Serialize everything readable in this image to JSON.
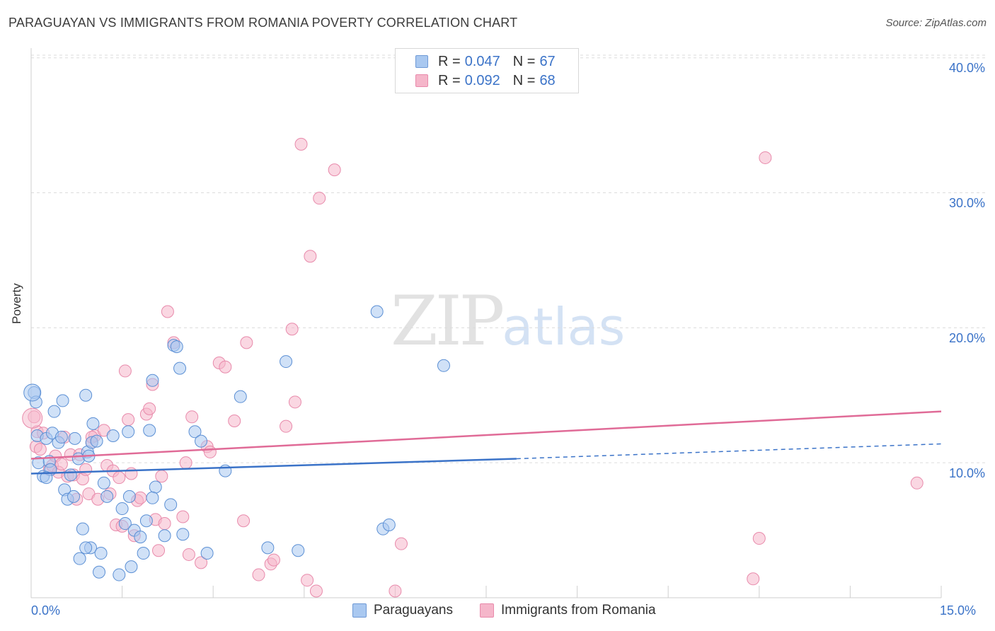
{
  "title": "PARAGUAYAN VS IMMIGRANTS FROM ROMANIA POVERTY CORRELATION CHART",
  "source": "Source: ZipAtlas.com",
  "watermark": {
    "zip": "ZIP",
    "atlas": "atlas"
  },
  "legend": {
    "rows": [
      {
        "r_label": "R = ",
        "r_value": "0.047",
        "n_label": "N = ",
        "n_value": "67",
        "color": "#a9c8f0"
      },
      {
        "r_label": "R = ",
        "r_value": "0.092",
        "n_label": "N = ",
        "n_value": "68",
        "color": "#f5b6ca"
      }
    ]
  },
  "bottom_legend": [
    {
      "label": "Paraguayans",
      "color": "#a9c8f0"
    },
    {
      "label": "Immigrants from Romania",
      "color": "#f5b6ca"
    }
  ],
  "chart_data": {
    "type": "scatter",
    "title": "PARAGUAYAN VS IMMIGRANTS FROM ROMANIA POVERTY CORRELATION CHART",
    "xlabel": "",
    "ylabel": "Poverty",
    "xlim": [
      0,
      15
    ],
    "ylim": [
      0,
      41
    ],
    "x_tick_labels": [
      "0.0%",
      "15.0%"
    ],
    "y_tick_labels": [
      "10.0%",
      "20.0%",
      "30.0%",
      "40.0%"
    ],
    "y_ticks": [
      10,
      20,
      30,
      40
    ],
    "colors": {
      "paraguayans": "#3b73c8",
      "romania": "#e06b97",
      "paraguayans_fill": "#a9c8f0",
      "romania_fill": "#f5b6ca"
    },
    "series": [
      {
        "name": "Paraguayans",
        "trend": {
          "x0": 0,
          "y0": 9.2,
          "x1": 8.0,
          "y1": 10.3,
          "x_dash_end": 15,
          "y_dash_end": 11.4
        },
        "points": [
          [
            0.05,
            15.2
          ],
          [
            0.08,
            14.5
          ],
          [
            0.1,
            12.0
          ],
          [
            0.12,
            10.0
          ],
          [
            0.2,
            9.0
          ],
          [
            0.25,
            11.8
          ],
          [
            0.3,
            10.1
          ],
          [
            0.32,
            9.5
          ],
          [
            0.35,
            12.2
          ],
          [
            0.38,
            13.8
          ],
          [
            0.45,
            11.5
          ],
          [
            0.5,
            11.9
          ],
          [
            0.52,
            14.6
          ],
          [
            0.55,
            8.0
          ],
          [
            0.6,
            7.3
          ],
          [
            0.65,
            9.1
          ],
          [
            0.7,
            7.5
          ],
          [
            0.72,
            11.8
          ],
          [
            0.78,
            10.3
          ],
          [
            0.85,
            5.1
          ],
          [
            0.9,
            15.0
          ],
          [
            0.93,
            10.8
          ],
          [
            0.95,
            10.5
          ],
          [
            0.98,
            3.7
          ],
          [
            1.0,
            11.5
          ],
          [
            1.02,
            12.9
          ],
          [
            1.08,
            11.6
          ],
          [
            1.12,
            1.9
          ],
          [
            1.15,
            3.3
          ],
          [
            1.2,
            8.5
          ],
          [
            1.25,
            7.5
          ],
          [
            1.35,
            12.0
          ],
          [
            1.45,
            1.7
          ],
          [
            1.5,
            6.6
          ],
          [
            1.55,
            5.5
          ],
          [
            1.6,
            12.3
          ],
          [
            1.62,
            7.5
          ],
          [
            1.65,
            2.3
          ],
          [
            1.7,
            5.0
          ],
          [
            1.8,
            4.5
          ],
          [
            1.85,
            3.3
          ],
          [
            1.9,
            5.7
          ],
          [
            1.95,
            12.4
          ],
          [
            2.0,
            16.1
          ],
          [
            2.05,
            8.2
          ],
          [
            2.2,
            4.6
          ],
          [
            2.3,
            6.9
          ],
          [
            2.35,
            18.7
          ],
          [
            2.4,
            18.6
          ],
          [
            2.45,
            17.0
          ],
          [
            2.5,
            4.7
          ],
          [
            2.7,
            12.3
          ],
          [
            2.8,
            11.6
          ],
          [
            2.9,
            3.3
          ],
          [
            3.2,
            9.4
          ],
          [
            3.45,
            14.9
          ],
          [
            3.9,
            3.7
          ],
          [
            4.2,
            17.5
          ],
          [
            4.4,
            3.5
          ],
          [
            5.7,
            21.2
          ],
          [
            5.8,
            5.1
          ],
          [
            5.9,
            5.4
          ],
          [
            6.8,
            17.2
          ],
          [
            0.9,
            3.7
          ],
          [
            0.8,
            2.9
          ],
          [
            0.25,
            8.9
          ],
          [
            2.0,
            7.4
          ]
        ]
      },
      {
        "name": "Immigrants from Romania",
        "trend": {
          "x0": 0,
          "y0": 10.3,
          "x1": 15,
          "y1": 13.8
        },
        "points": [
          [
            0.05,
            13.4
          ],
          [
            0.08,
            11.2
          ],
          [
            0.1,
            12.3
          ],
          [
            0.15,
            11.0
          ],
          [
            0.2,
            12.2
          ],
          [
            0.3,
            9.5
          ],
          [
            0.35,
            9.8
          ],
          [
            0.4,
            10.5
          ],
          [
            0.45,
            9.3
          ],
          [
            0.5,
            9.9
          ],
          [
            0.55,
            11.9
          ],
          [
            0.6,
            9.0
          ],
          [
            0.65,
            10.6
          ],
          [
            0.7,
            9.1
          ],
          [
            0.75,
            7.3
          ],
          [
            0.8,
            10.6
          ],
          [
            0.85,
            8.8
          ],
          [
            0.9,
            9.5
          ],
          [
            0.95,
            7.7
          ],
          [
            1.0,
            11.5
          ],
          [
            1.05,
            12.0
          ],
          [
            1.1,
            7.3
          ],
          [
            1.2,
            12.4
          ],
          [
            1.25,
            9.8
          ],
          [
            1.3,
            7.7
          ],
          [
            1.35,
            9.4
          ],
          [
            1.4,
            5.4
          ],
          [
            1.45,
            8.9
          ],
          [
            1.5,
            5.3
          ],
          [
            1.55,
            16.8
          ],
          [
            1.6,
            13.2
          ],
          [
            1.65,
            9.2
          ],
          [
            1.7,
            4.6
          ],
          [
            1.75,
            7.2
          ],
          [
            1.8,
            7.4
          ],
          [
            1.9,
            13.6
          ],
          [
            1.95,
            14.0
          ],
          [
            2.0,
            15.8
          ],
          [
            2.05,
            5.8
          ],
          [
            2.1,
            3.5
          ],
          [
            2.15,
            9.0
          ],
          [
            2.2,
            5.5
          ],
          [
            2.25,
            21.2
          ],
          [
            2.35,
            18.9
          ],
          [
            2.5,
            6.0
          ],
          [
            2.55,
            10.0
          ],
          [
            2.6,
            3.2
          ],
          [
            2.65,
            13.4
          ],
          [
            2.8,
            2.6
          ],
          [
            2.9,
            11.2
          ],
          [
            2.95,
            10.8
          ],
          [
            3.1,
            17.4
          ],
          [
            3.2,
            17.1
          ],
          [
            3.35,
            13.1
          ],
          [
            3.5,
            5.7
          ],
          [
            3.55,
            18.9
          ],
          [
            3.75,
            1.7
          ],
          [
            3.95,
            2.5
          ],
          [
            4.0,
            2.8
          ],
          [
            4.2,
            12.7
          ],
          [
            4.3,
            19.9
          ],
          [
            4.35,
            14.5
          ],
          [
            4.45,
            33.6
          ],
          [
            4.6,
            25.3
          ],
          [
            4.75,
            29.6
          ],
          [
            5.0,
            31.7
          ],
          [
            6.1,
            4.0
          ],
          [
            12.0,
            4.4
          ]
        ],
        "extra_points": [
          [
            12.1,
            32.6
          ],
          [
            14.6,
            8.5
          ],
          [
            11.9,
            1.4
          ],
          [
            4.55,
            1.3
          ],
          [
            4.7,
            0.5
          ],
          [
            6.0,
            0.5
          ],
          [
            1.0,
            11.9
          ]
        ]
      }
    ]
  }
}
